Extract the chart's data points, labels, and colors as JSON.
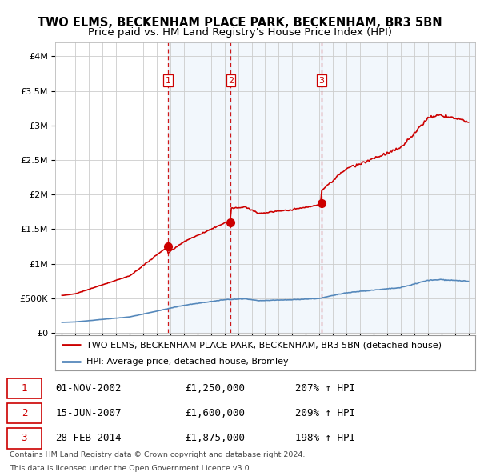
{
  "title": "TWO ELMS, BECKENHAM PLACE PARK, BECKENHAM, BR3 5BN",
  "subtitle": "Price paid vs. HM Land Registry's House Price Index (HPI)",
  "ylabel_values": [
    0,
    500000,
    1000000,
    1500000,
    2000000,
    2500000,
    3000000,
    3500000,
    4000000
  ],
  "ylim": [
    0,
    4200000
  ],
  "xlim_start": 1994.5,
  "xlim_end": 2025.5,
  "red_line_color": "#cc0000",
  "blue_line_color": "#5588bb",
  "sale_marker_color": "#cc0000",
  "vline_color": "#cc0000",
  "grid_color": "#cccccc",
  "background_color": "#ffffff",
  "shade_color": "#ddeeff",
  "legend_label_red": "TWO ELMS, BECKENHAM PLACE PARK, BECKENHAM, BR3 5BN (detached house)",
  "legend_label_blue": "HPI: Average price, detached house, Bromley",
  "sales": [
    {
      "num": 1,
      "date": "01-NOV-2002",
      "price": 1250000,
      "year": 2002.83,
      "hpi_pct": "207%",
      "arrow": "↑"
    },
    {
      "num": 2,
      "date": "15-JUN-2007",
      "price": 1600000,
      "year": 2007.46,
      "hpi_pct": "209%",
      "arrow": "↑"
    },
    {
      "num": 3,
      "date": "28-FEB-2014",
      "price": 1875000,
      "year": 2014.16,
      "hpi_pct": "198%",
      "arrow": "↑"
    }
  ],
  "footer_line1": "Contains HM Land Registry data © Crown copyright and database right 2024.",
  "footer_line2": "This data is licensed under the Open Government Licence v3.0.",
  "title_fontsize": 10.5,
  "subtitle_fontsize": 9.5,
  "tick_fontsize": 8,
  "legend_fontsize": 8
}
